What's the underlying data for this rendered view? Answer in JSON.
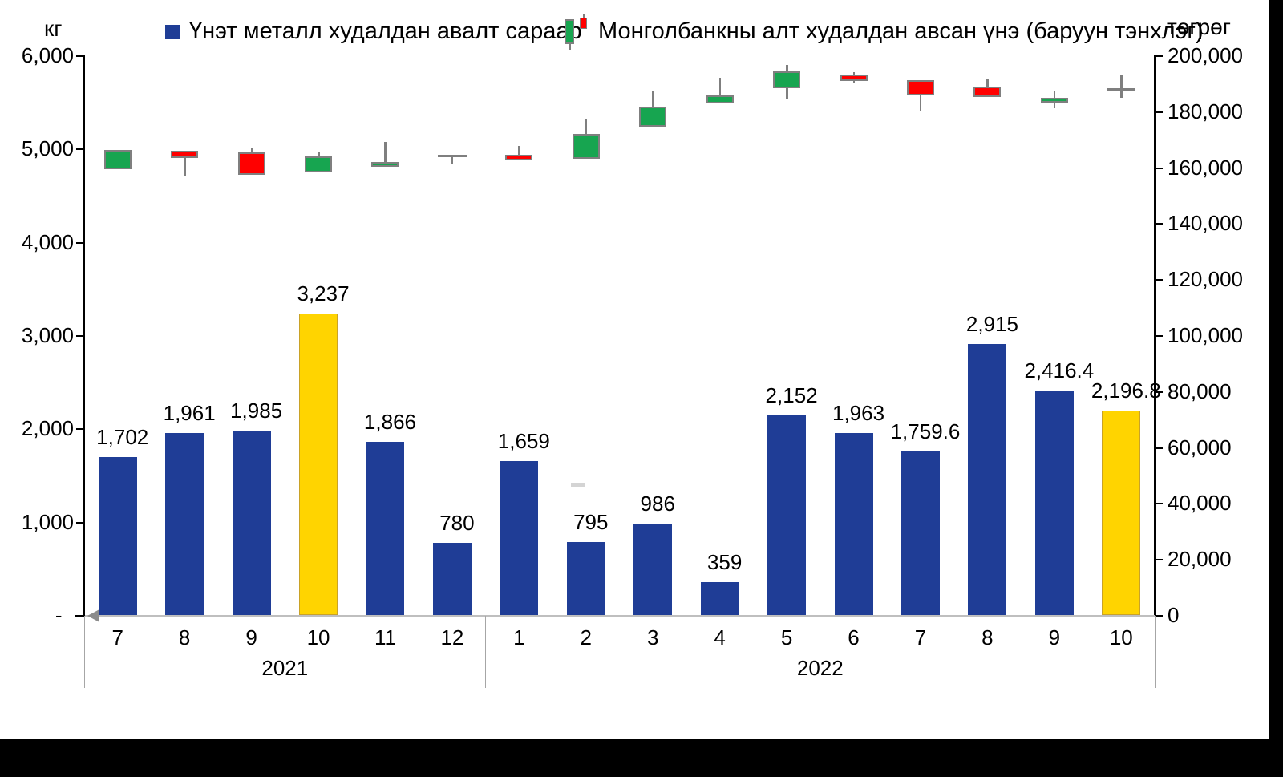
{
  "units": {
    "left": "кг",
    "right": "төгрөг"
  },
  "legend": {
    "bar_series_label": "Үнэт металл худалдан авалт сараар",
    "candle_series_label": "Монголбанкны алт худалдан авсан үнэ (баруун тэнхлэг)"
  },
  "colors": {
    "bar_blue": "#1F3D96",
    "bar_gold": "#FFD400",
    "bar_gold_border": "#C9A227",
    "candle_green": "#17A550",
    "candle_red": "#FF0000",
    "candle_border": "#7F7F7F",
    "axis_black": "#000000",
    "baseline_gray": "#BFBFBF",
    "divider_gray": "#A6A6A6"
  },
  "chart_data": {
    "type": "combo",
    "grid": false,
    "legend_position": "top",
    "categories": [
      "2021-07",
      "2021-08",
      "2021-09",
      "2021-10",
      "2021-11",
      "2021-12",
      "2022-01",
      "2022-02",
      "2022-03",
      "2022-04",
      "2022-05",
      "2022-06",
      "2022-07",
      "2022-08",
      "2022-09",
      "2022-10"
    ],
    "x_axis": {
      "year_groups": [
        {
          "label": "2021",
          "months": [
            "7",
            "8",
            "9",
            "10",
            "11",
            "12"
          ]
        },
        {
          "label": "2022",
          "months": [
            "1",
            "2",
            "3",
            "4",
            "5",
            "6",
            "7",
            "8",
            "9",
            "10"
          ]
        }
      ]
    },
    "left_axis": {
      "label": "кг",
      "min": 0,
      "max": 6000,
      "tick_step": 1000,
      "tick_labels": [
        "6,000",
        "5,000",
        "4,000",
        "3,000",
        "2,000",
        "1,000",
        "-  "
      ]
    },
    "right_axis": {
      "label": "төгрөг",
      "min": 0,
      "max": 200000,
      "tick_step": 20000,
      "tick_labels": [
        "200,000",
        "180,000",
        "160,000",
        "140,000",
        "120,000",
        "100,000",
        "80,000",
        "60,000",
        "40,000",
        "20,000",
        "0"
      ]
    },
    "series": [
      {
        "name": "Үнэт металл худалдан авалт сараар",
        "type": "bar",
        "axis": "left",
        "unit": "кг",
        "values": [
          1702,
          1961,
          1985,
          3237,
          1866,
          780,
          1659,
          795,
          986,
          359,
          2152,
          1963,
          1759.6,
          2915,
          2416.4,
          2196.8
        ],
        "labels": [
          "1,702",
          "1,961",
          "1,985",
          "3,237",
          "1,866",
          "780",
          "1,659",
          "795",
          "986",
          "359",
          "2,152",
          "1,963",
          "1,759.6",
          "2,915",
          "2,416.4",
          "2,196.8"
        ],
        "highlight_indices": [
          3,
          15
        ]
      },
      {
        "name": "Монголбанкны алт худалдан авсан үнэ (баруун тэнхлэг)",
        "type": "candlestick",
        "axis": "right",
        "unit": "төгрөг",
        "ohlc": [
          {
            "open": 159600,
            "high": 166500,
            "low": 159600,
            "close": 166500
          },
          {
            "open": 166200,
            "high": 166200,
            "low": 157000,
            "close": 163600
          },
          {
            "open": 165600,
            "high": 167000,
            "low": 157600,
            "close": 157600
          },
          {
            "open": 158400,
            "high": 165600,
            "low": 158400,
            "close": 164200
          },
          {
            "open": 160400,
            "high": 169300,
            "low": 160400,
            "close": 162200
          },
          {
            "open": 164200,
            "high": 164200,
            "low": 161300,
            "close": 164200
          },
          {
            "open": 164800,
            "high": 167900,
            "low": 162800,
            "close": 162800
          },
          {
            "open": 163300,
            "high": 177400,
            "low": 163300,
            "close": 172200
          },
          {
            "open": 174800,
            "high": 187700,
            "low": 174800,
            "close": 182000
          },
          {
            "open": 183100,
            "high": 192300,
            "low": 183100,
            "close": 186000
          },
          {
            "open": 188500,
            "high": 196800,
            "low": 184800,
            "close": 194500
          },
          {
            "open": 193400,
            "high": 194200,
            "low": 190300,
            "close": 191100
          },
          {
            "open": 191400,
            "high": 191400,
            "low": 180200,
            "close": 186000
          },
          {
            "open": 189100,
            "high": 192000,
            "low": 185400,
            "close": 185400
          },
          {
            "open": 183400,
            "high": 187700,
            "low": 181400,
            "close": 185100
          },
          {
            "open": 188500,
            "high": 193400,
            "low": 185100,
            "close": 187500
          }
        ]
      }
    ]
  }
}
